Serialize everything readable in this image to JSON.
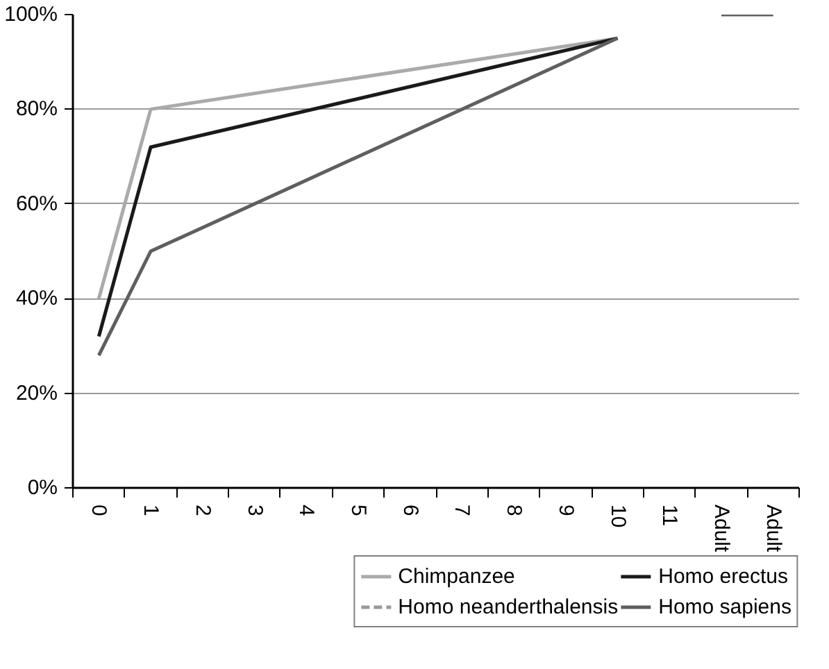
{
  "chart_data": {
    "type": "line",
    "categories": [
      "0",
      "1",
      "2",
      "3",
      "4",
      "5",
      "6",
      "7",
      "8",
      "9",
      "10",
      "11",
      "Adult",
      "Adult"
    ],
    "series": [
      {
        "name": "Chimpanzee",
        "color": "#aaaaaa",
        "values": [
          40,
          80,
          null,
          null,
          null,
          null,
          null,
          null,
          null,
          null,
          95,
          null,
          null,
          null
        ]
      },
      {
        "name": "Homo neanderthalensis",
        "color": "#999999",
        "line_style": "dashed",
        "values": [
          null,
          null,
          null,
          null,
          null,
          null,
          null,
          null,
          null,
          null,
          null,
          null,
          null,
          null
        ]
      },
      {
        "name": "Homo erectus",
        "color": "#1a1a1a",
        "values": [
          32,
          72,
          null,
          null,
          null,
          null,
          null,
          null,
          null,
          null,
          95,
          null,
          null,
          null
        ]
      },
      {
        "name": "Homo sapiens",
        "color": "#5f5f5f",
        "values": [
          28,
          50,
          null,
          null,
          null,
          null,
          null,
          null,
          null,
          null,
          95,
          null,
          null,
          null
        ]
      },
      {
        "color": "#5f5f5f",
        "values": [
          null,
          null,
          null,
          null,
          null,
          null,
          null,
          null,
          null,
          null,
          null,
          null,
          100,
          100
        ]
      }
    ],
    "ylim": [
      0,
      100
    ],
    "yticks": [
      {
        "value": 0,
        "label": "0%"
      },
      {
        "value": 20,
        "label": "20%"
      },
      {
        "value": 40,
        "label": "40%"
      },
      {
        "value": 60,
        "label": "60%"
      },
      {
        "value": 80,
        "label": "80%"
      },
      {
        "value": 100,
        "label": "100%"
      }
    ],
    "grid": "y",
    "legend": "bottom",
    "marker": "none",
    "line_style": "solid"
  }
}
